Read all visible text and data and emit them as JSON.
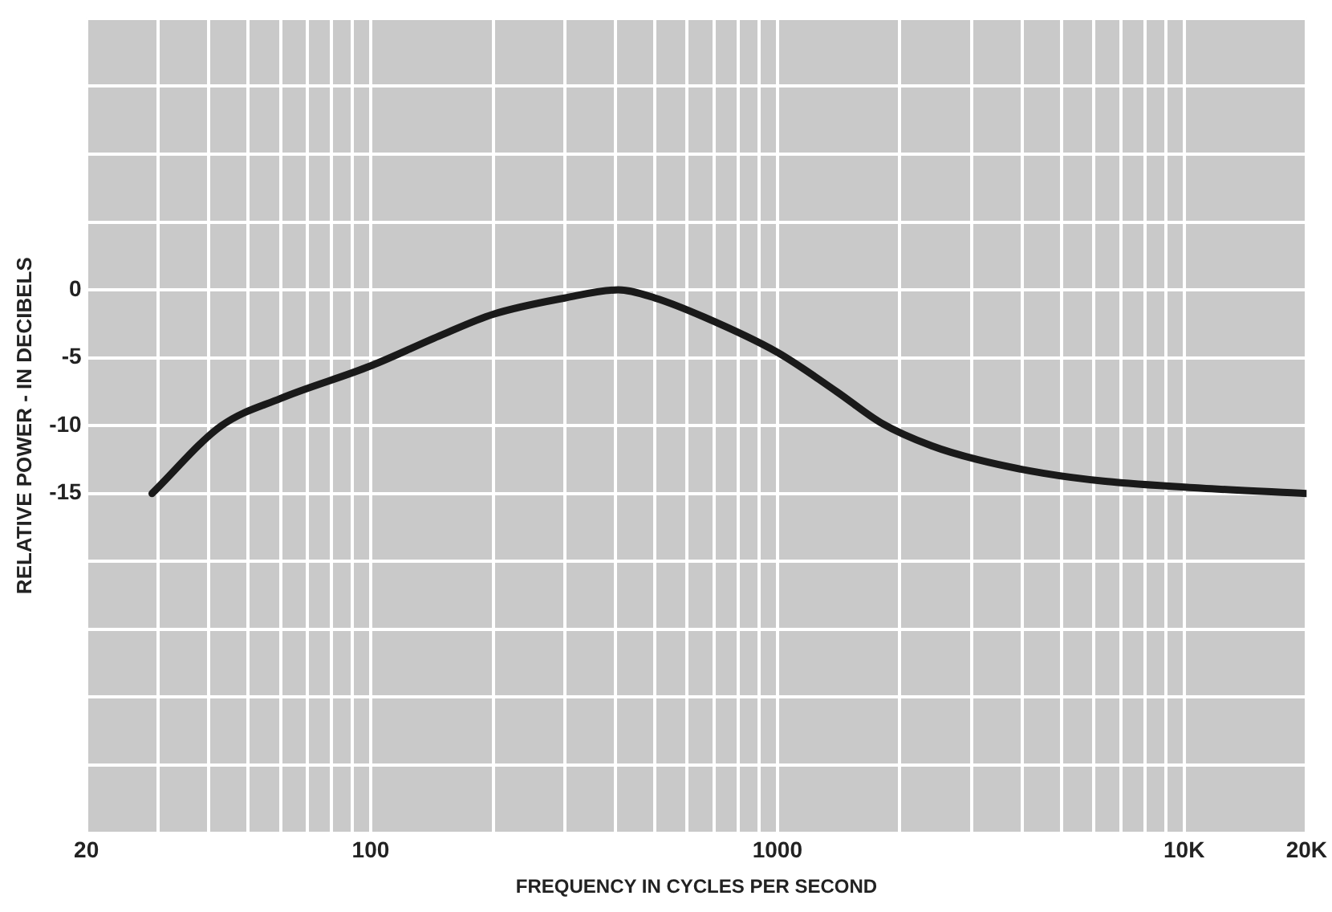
{
  "chart_data": {
    "type": "line",
    "xlabel": "FREQUENCY IN CYCLES PER SECOND",
    "ylabel": "RELATIVE POWER - IN DECIBELS",
    "log": "x",
    "grid": true,
    "legend": false,
    "marker": "none",
    "line_style": "solid",
    "xlim": [
      20,
      20000
    ],
    "ylim": [
      -40,
      20
    ],
    "xticks": [
      {
        "value": 20,
        "label": "20"
      },
      {
        "value": 30,
        "label": null
      },
      {
        "value": 40,
        "label": null
      },
      {
        "value": 50,
        "label": null
      },
      {
        "value": 60,
        "label": null
      },
      {
        "value": 70,
        "label": null
      },
      {
        "value": 80,
        "label": null
      },
      {
        "value": 90,
        "label": null
      },
      {
        "value": 100,
        "label": "100"
      },
      {
        "value": 200,
        "label": null
      },
      {
        "value": 300,
        "label": null
      },
      {
        "value": 400,
        "label": null
      },
      {
        "value": 500,
        "label": null
      },
      {
        "value": 600,
        "label": null
      },
      {
        "value": 700,
        "label": null
      },
      {
        "value": 800,
        "label": null
      },
      {
        "value": 900,
        "label": null
      },
      {
        "value": 1000,
        "label": "1000"
      },
      {
        "value": 2000,
        "label": null
      },
      {
        "value": 3000,
        "label": null
      },
      {
        "value": 4000,
        "label": null
      },
      {
        "value": 5000,
        "label": null
      },
      {
        "value": 6000,
        "label": null
      },
      {
        "value": 7000,
        "label": null
      },
      {
        "value": 8000,
        "label": null
      },
      {
        "value": 9000,
        "label": null
      },
      {
        "value": 10000,
        "label": "10K"
      },
      {
        "value": 20000,
        "label": "20K"
      }
    ],
    "yticks": [
      {
        "value": -40,
        "label": null
      },
      {
        "value": -35,
        "label": null
      },
      {
        "value": -30,
        "label": null
      },
      {
        "value": -25,
        "label": null
      },
      {
        "value": -20,
        "label": null
      },
      {
        "value": -15,
        "label": "-15"
      },
      {
        "value": -10,
        "label": "-10"
      },
      {
        "value": -5,
        "label": "-5"
      },
      {
        "value": 0,
        "label": "0"
      },
      {
        "value": 5,
        "label": null
      },
      {
        "value": 10,
        "label": null
      },
      {
        "value": 15,
        "label": null
      },
      {
        "value": 20,
        "label": null
      }
    ],
    "series": [
      {
        "color": "#1a1a1a",
        "x": [
          29,
          43,
          60,
          100,
          150,
          200,
          300,
          406,
          500,
          660,
          1000,
          1400,
          1800,
          2400,
          3100,
          4500,
          6400,
          11000,
          20000
        ],
        "values": [
          -15,
          -10,
          -8,
          -5.6,
          -3.3,
          -1.8,
          -0.6,
          0,
          -0.6,
          -2,
          -4.6,
          -7.5,
          -9.8,
          -11.5,
          -12.5,
          -13.5,
          -14.1,
          -14.6,
          -15
        ]
      }
    ]
  }
}
